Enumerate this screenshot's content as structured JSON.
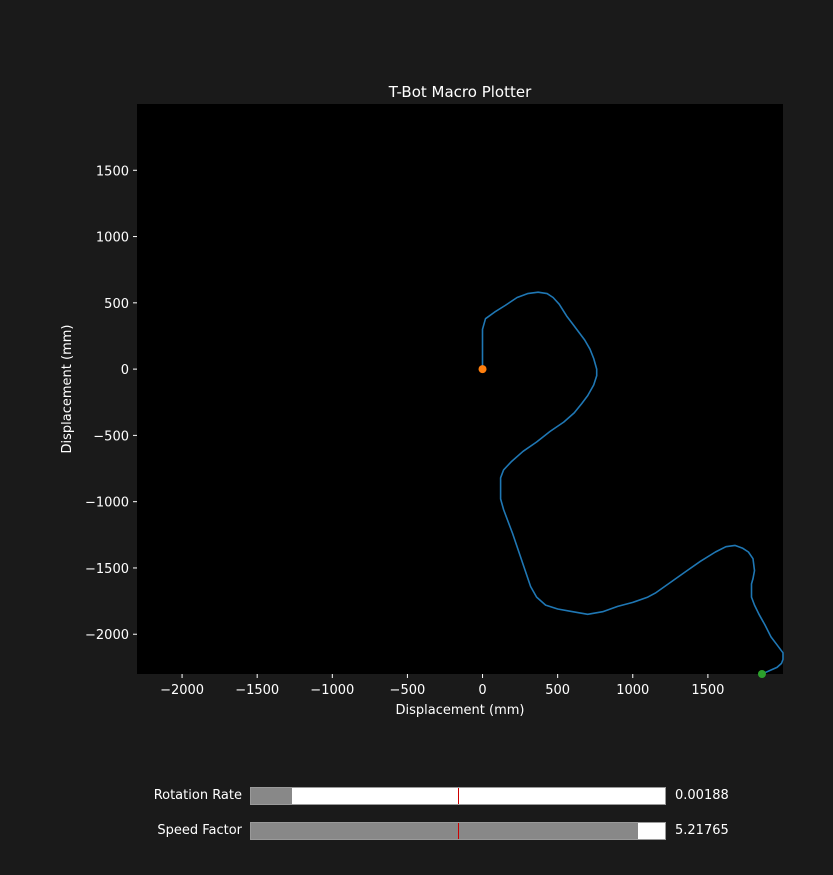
{
  "chart_data": {
    "type": "line",
    "title": "T-Bot Macro Plotter",
    "xlabel": "Displacement (mm)",
    "ylabel": "Displacement (mm)",
    "xlim": [
      -2300,
      2000
    ],
    "ylim": [
      -2300,
      2000
    ],
    "xticks": [
      -2000,
      -1500,
      -1000,
      -500,
      0,
      500,
      1000,
      1500
    ],
    "yticks": [
      1500,
      1000,
      500,
      0,
      -500,
      -1000,
      -1500,
      -2000
    ],
    "grid": false,
    "background": "#000000",
    "series": [
      {
        "color": "#1f77b4",
        "x": [
          0,
          0,
          20,
          80,
          150,
          230,
          300,
          370,
          430,
          470,
          510,
          560,
          600,
          640,
          680,
          715,
          740,
          760,
          760,
          740,
          700,
          660,
          610,
          540,
          450,
          360,
          270,
          190,
          140,
          120,
          120,
          120,
          140,
          170,
          200,
          230,
          260,
          290,
          320,
          360,
          420,
          500,
          600,
          700,
          800,
          900,
          1000,
          1100,
          1150,
          1250,
          1350,
          1450,
          1550,
          1620,
          1680,
          1730,
          1770,
          1800,
          1810,
          1800,
          1790,
          1790,
          1810,
          1840,
          1880,
          1920,
          1960,
          2000,
          2000,
          1990,
          1960,
          1920,
          1880,
          1860
        ],
        "y": [
          0,
          300,
          380,
          430,
          480,
          540,
          570,
          580,
          570,
          540,
          490,
          400,
          340,
          280,
          220,
          150,
          80,
          0,
          -50,
          -120,
          -200,
          -260,
          -330,
          -400,
          -470,
          -550,
          -620,
          -700,
          -760,
          -820,
          -880,
          -980,
          -1060,
          -1150,
          -1240,
          -1340,
          -1440,
          -1540,
          -1640,
          -1720,
          -1780,
          -1810,
          -1830,
          -1850,
          -1830,
          -1790,
          -1760,
          -1720,
          -1690,
          -1610,
          -1530,
          -1450,
          -1380,
          -1340,
          -1330,
          -1350,
          -1380,
          -1430,
          -1520,
          -1580,
          -1620,
          -1720,
          -1780,
          -1850,
          -1930,
          -2020,
          -2080,
          -2140,
          -2190,
          -2220,
          -2250,
          -2270,
          -2290,
          -2300
        ]
      }
    ],
    "markers": [
      {
        "x": 0,
        "y": 0,
        "color": "#ff7f0e"
      },
      {
        "x": 1860,
        "y": -2300,
        "color": "#2ca02c"
      }
    ]
  },
  "sliders": [
    {
      "label": "Rotation Rate",
      "value_text": "0.00188",
      "fill_fraction": 0.1
    },
    {
      "label": "Speed Factor",
      "value_text": "5.21765",
      "fill_fraction": 0.935
    }
  ],
  "colors": {
    "figure_bg": "#1a1a1a",
    "axes_bg": "#000000",
    "slider_fill": "#888888",
    "slider_init_marker": "#cc0000"
  }
}
